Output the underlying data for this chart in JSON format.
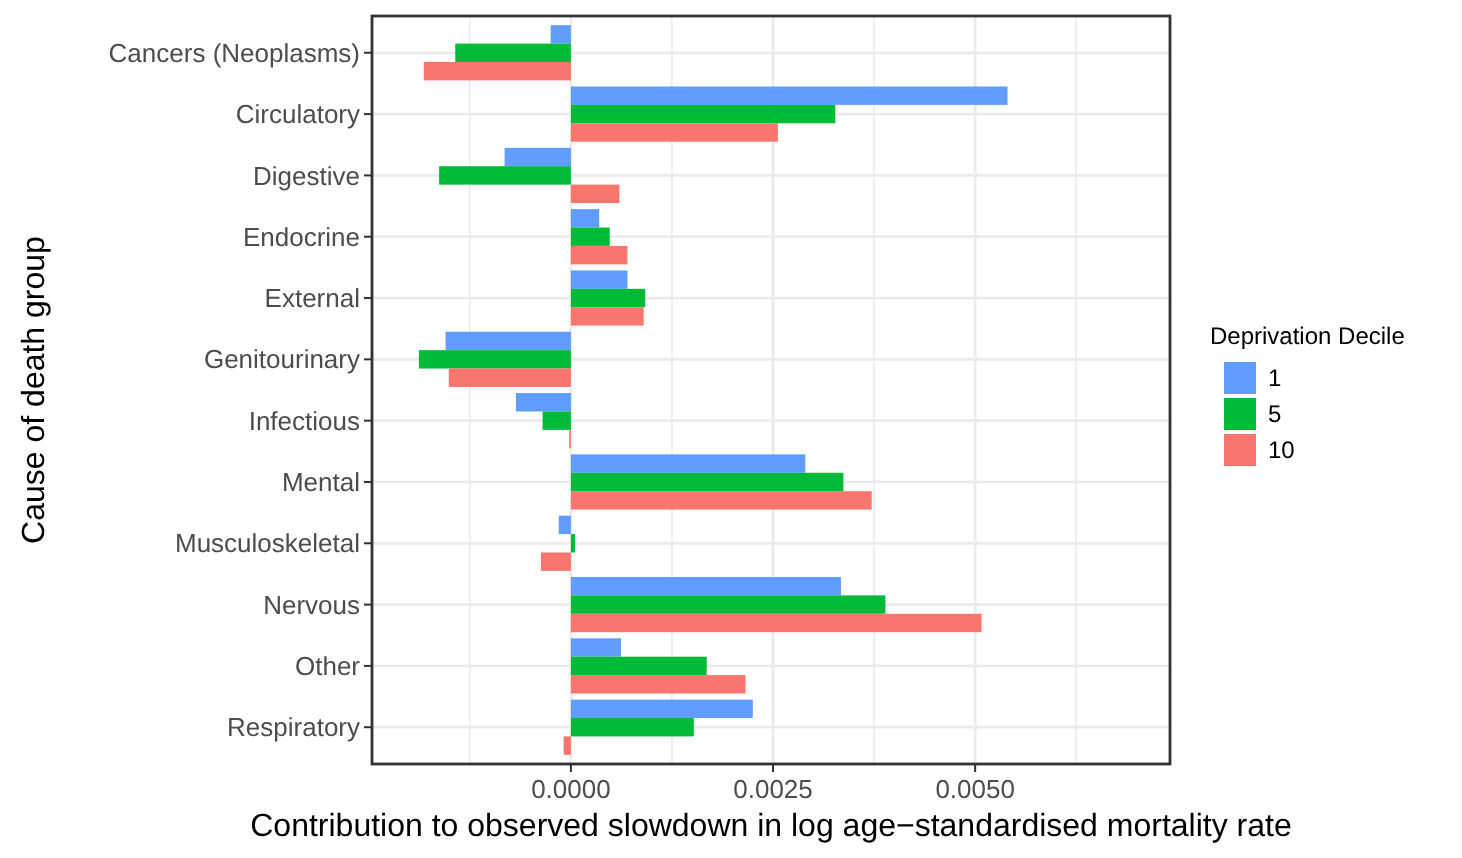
{
  "chart_data": {
    "type": "bar",
    "orientation": "horizontal",
    "xlabel": "Contribution to observed slowdown in log age−standardised mortality rate",
    "ylabel": "Cause of death group",
    "legend_title": "Deprivation Decile",
    "legend": "right",
    "grid": true,
    "categories": [
      "Cancers (Neoplasms)",
      "Circulatory",
      "Digestive",
      "Endocrine",
      "External",
      "Genitourinary",
      "Infectious",
      "Mental",
      "Musculoskeletal",
      "Nervous",
      "Other",
      "Respiratory"
    ],
    "xlim": [
      -0.00246,
      0.00741
    ],
    "xticks": [
      {
        "value": -0.00125,
        "label": null
      },
      {
        "value": 0,
        "label": "0.0000"
      },
      {
        "value": 0.00125,
        "label": null
      },
      {
        "value": 0.0025,
        "label": "0.0025"
      },
      {
        "value": 0.00375,
        "label": null
      },
      {
        "value": 0.005,
        "label": "0.0050"
      },
      {
        "value": 0.00625,
        "label": null
      }
    ],
    "series": [
      {
        "name": "1",
        "color": "#619cff",
        "values": [
          -0.00025,
          0.0054,
          -0.00082,
          0.00035,
          0.0007,
          -0.00155,
          -0.00068,
          0.0029,
          -0.00015,
          0.00334,
          0.00062,
          0.00225
        ]
      },
      {
        "name": "5",
        "color": "#00ba38",
        "values": [
          -0.00143,
          0.00327,
          -0.00163,
          0.00048,
          0.00092,
          -0.00188,
          -0.00035,
          0.00337,
          5e-05,
          0.00389,
          0.00168,
          0.00152
        ]
      },
      {
        "name": "10",
        "color": "#f8766d",
        "values": [
          -0.00182,
          0.00256,
          0.0006,
          0.0007,
          0.0009,
          -0.00151,
          -2e-05,
          0.00372,
          -0.00037,
          0.00508,
          0.00216,
          -9e-05
        ]
      }
    ]
  }
}
